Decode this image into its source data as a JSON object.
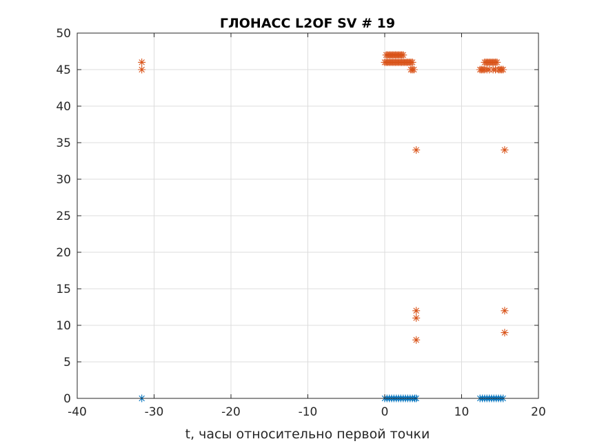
{
  "chart_data": {
    "type": "scatter",
    "title": "ГЛОНАСС L2OF SV # 19",
    "xlabel": "t, часы относительно первой точки",
    "ylabel": "",
    "xlim": [
      -40,
      20
    ],
    "ylim": [
      0,
      50
    ],
    "xticks": [
      -40,
      -30,
      -20,
      -10,
      0,
      10,
      20
    ],
    "yticks": [
      0,
      5,
      10,
      15,
      20,
      25,
      30,
      35,
      40,
      45,
      50
    ],
    "xtick_labels": [
      "-40",
      "-30",
      "-20",
      "-10",
      "0",
      "10",
      "20"
    ],
    "ytick_labels": [
      "0",
      "5",
      "10",
      "15",
      "20",
      "25",
      "30",
      "35",
      "40",
      "45",
      "50"
    ],
    "grid": true,
    "marker": "asterisk",
    "series": [
      {
        "name": "series-1",
        "color": "#0072BD",
        "points": [
          [
            -31.6,
            0
          ],
          [
            0,
            0
          ],
          [
            0.3,
            0
          ],
          [
            0.6,
            0
          ],
          [
            0.9,
            0
          ],
          [
            1.2,
            0
          ],
          [
            1.5,
            0
          ],
          [
            1.8,
            0
          ],
          [
            2.1,
            0
          ],
          [
            2.4,
            0
          ],
          [
            2.7,
            0
          ],
          [
            3.0,
            0
          ],
          [
            3.3,
            0
          ],
          [
            3.6,
            0
          ],
          [
            3.9,
            0
          ],
          [
            4.1,
            0
          ],
          [
            12.4,
            0
          ],
          [
            12.7,
            0
          ],
          [
            13.0,
            0
          ],
          [
            13.3,
            0
          ],
          [
            13.6,
            0
          ],
          [
            13.9,
            0
          ],
          [
            14.2,
            0
          ],
          [
            14.5,
            0
          ],
          [
            14.8,
            0
          ],
          [
            15.1,
            0
          ],
          [
            15.4,
            0
          ]
        ]
      },
      {
        "name": "series-2",
        "color": "#D95319",
        "points": [
          [
            -31.6,
            46
          ],
          [
            -31.6,
            45
          ],
          [
            0.0,
            46
          ],
          [
            0.2,
            47
          ],
          [
            0.2,
            46
          ],
          [
            0.4,
            47
          ],
          [
            0.4,
            46
          ],
          [
            0.6,
            47
          ],
          [
            0.6,
            46
          ],
          [
            0.8,
            47
          ],
          [
            0.8,
            46
          ],
          [
            1.0,
            47
          ],
          [
            1.0,
            46
          ],
          [
            1.2,
            47
          ],
          [
            1.2,
            46
          ],
          [
            1.4,
            47
          ],
          [
            1.4,
            46
          ],
          [
            1.6,
            47
          ],
          [
            1.6,
            46
          ],
          [
            1.8,
            47
          ],
          [
            1.8,
            46
          ],
          [
            2.0,
            47
          ],
          [
            2.0,
            46
          ],
          [
            2.2,
            47
          ],
          [
            2.2,
            46
          ],
          [
            2.4,
            47
          ],
          [
            2.4,
            46
          ],
          [
            2.6,
            46
          ],
          [
            2.8,
            46
          ],
          [
            3.0,
            46
          ],
          [
            3.2,
            46
          ],
          [
            3.4,
            45
          ],
          [
            3.6,
            45
          ],
          [
            3.8,
            45
          ],
          [
            3.6,
            46
          ],
          [
            3.4,
            46
          ],
          [
            4.1,
            34
          ],
          [
            4.1,
            12
          ],
          [
            4.1,
            11
          ],
          [
            4.1,
            8
          ],
          [
            12.4,
            45
          ],
          [
            12.6,
            45
          ],
          [
            12.8,
            45
          ],
          [
            13.0,
            45
          ],
          [
            13.0,
            46
          ],
          [
            13.2,
            46
          ],
          [
            13.4,
            46
          ],
          [
            13.6,
            46
          ],
          [
            13.8,
            46
          ],
          [
            14.0,
            46
          ],
          [
            14.2,
            46
          ],
          [
            14.4,
            46
          ],
          [
            14.6,
            46
          ],
          [
            14.8,
            45
          ],
          [
            15.0,
            45
          ],
          [
            15.2,
            45
          ],
          [
            15.4,
            45
          ],
          [
            13.3,
            45
          ],
          [
            13.6,
            45
          ],
          [
            14.1,
            45
          ],
          [
            14.4,
            45
          ],
          [
            15.6,
            34
          ],
          [
            15.6,
            12
          ],
          [
            15.6,
            9
          ]
        ]
      }
    ]
  }
}
